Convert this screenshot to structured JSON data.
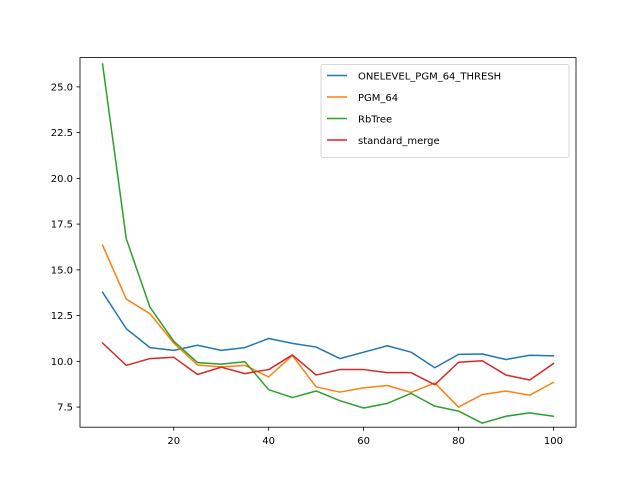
{
  "chart_data": {
    "type": "line",
    "title": "",
    "xlabel": "",
    "ylabel": "",
    "x": [
      5,
      10,
      15,
      20,
      25,
      30,
      35,
      40,
      45,
      50,
      55,
      60,
      65,
      70,
      75,
      80,
      85,
      90,
      95,
      100
    ],
    "xlim": [
      0.25,
      104.75
    ],
    "ylim": [
      6.4,
      26.6
    ],
    "xticks": [
      20,
      40,
      60,
      80,
      100
    ],
    "yticks": [
      7.5,
      10.0,
      12.5,
      15.0,
      17.5,
      20.0,
      22.5,
      25.0
    ],
    "xtick_labels": [
      "20",
      "40",
      "60",
      "80",
      "100"
    ],
    "ytick_labels": [
      "7.5",
      "10.0",
      "12.5",
      "15.0",
      "17.5",
      "20.0",
      "22.5",
      "25.0"
    ],
    "grid": false,
    "legend_position": "top-right",
    "series": [
      {
        "name": "ONELEVEL_PGM_64_THRESH",
        "color": "#1f77b4",
        "values": [
          13.78,
          11.78,
          10.75,
          10.6,
          10.88,
          10.6,
          10.75,
          11.25,
          10.98,
          10.78,
          10.15,
          10.5,
          10.85,
          10.5,
          9.65,
          10.38,
          10.4,
          10.1,
          10.33,
          10.3
        ]
      },
      {
        "name": "PGM_64",
        "color": "#ff7f0e",
        "values": [
          16.35,
          13.4,
          12.6,
          11.0,
          9.8,
          9.7,
          9.78,
          9.15,
          10.32,
          8.6,
          8.32,
          8.55,
          8.68,
          8.3,
          8.82,
          7.5,
          8.18,
          8.38,
          8.15,
          8.85
        ]
      },
      {
        "name": "RbTree",
        "color": "#2ca02c",
        "values": [
          26.25,
          16.7,
          12.95,
          11.1,
          9.93,
          9.85,
          9.98,
          8.45,
          8.02,
          8.38,
          7.85,
          7.45,
          7.7,
          8.25,
          7.55,
          7.28,
          6.62,
          7.0,
          7.18,
          7.0
        ]
      },
      {
        "name": "standard_merge",
        "color": "#d62728",
        "values": [
          11.0,
          9.78,
          10.15,
          10.22,
          9.28,
          9.68,
          9.33,
          9.55,
          10.35,
          9.25,
          9.55,
          9.55,
          9.38,
          9.38,
          8.72,
          9.95,
          10.03,
          9.25,
          8.98,
          9.88
        ]
      }
    ]
  }
}
